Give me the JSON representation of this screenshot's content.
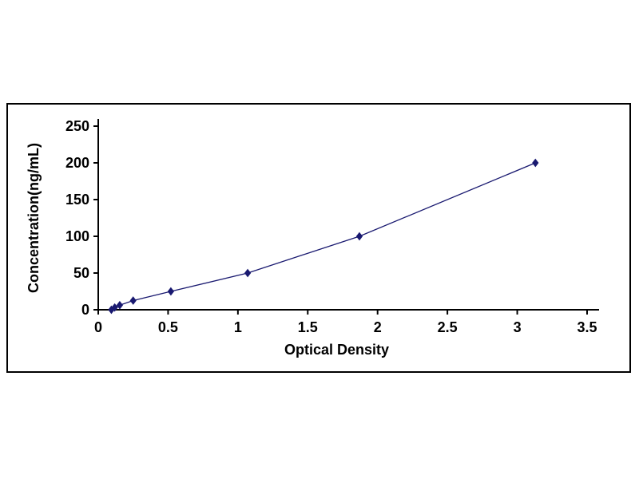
{
  "chart_data": {
    "type": "line",
    "title": "",
    "xlabel": "Optical Density",
    "ylabel": "Concentration(ng/mL)",
    "x": [
      0.094,
      0.118,
      0.154,
      0.25,
      0.52,
      1.07,
      1.87,
      3.13
    ],
    "y": [
      0,
      3.12,
      6.25,
      12.5,
      25,
      50,
      100,
      200
    ],
    "xlim": [
      0,
      3.5
    ],
    "ylim": [
      0,
      250
    ],
    "xticks": [
      0,
      0.5,
      1,
      1.5,
      2,
      2.5,
      3,
      3.5
    ],
    "xtick_labels": [
      "0",
      "0.5",
      "1",
      "1.5",
      "2",
      "2.5",
      "3",
      "3.5"
    ],
    "yticks": [
      0,
      50,
      100,
      150,
      200,
      250
    ],
    "ytick_labels": [
      "0",
      "50",
      "100",
      "150",
      "200",
      "250"
    ],
    "legend": null,
    "grid": false,
    "marker": "diamond",
    "line_color": "#191970",
    "marker_color": "#191970",
    "axis_color": "#000000",
    "frame_color": "#000000",
    "background_color": "#ffffff"
  }
}
